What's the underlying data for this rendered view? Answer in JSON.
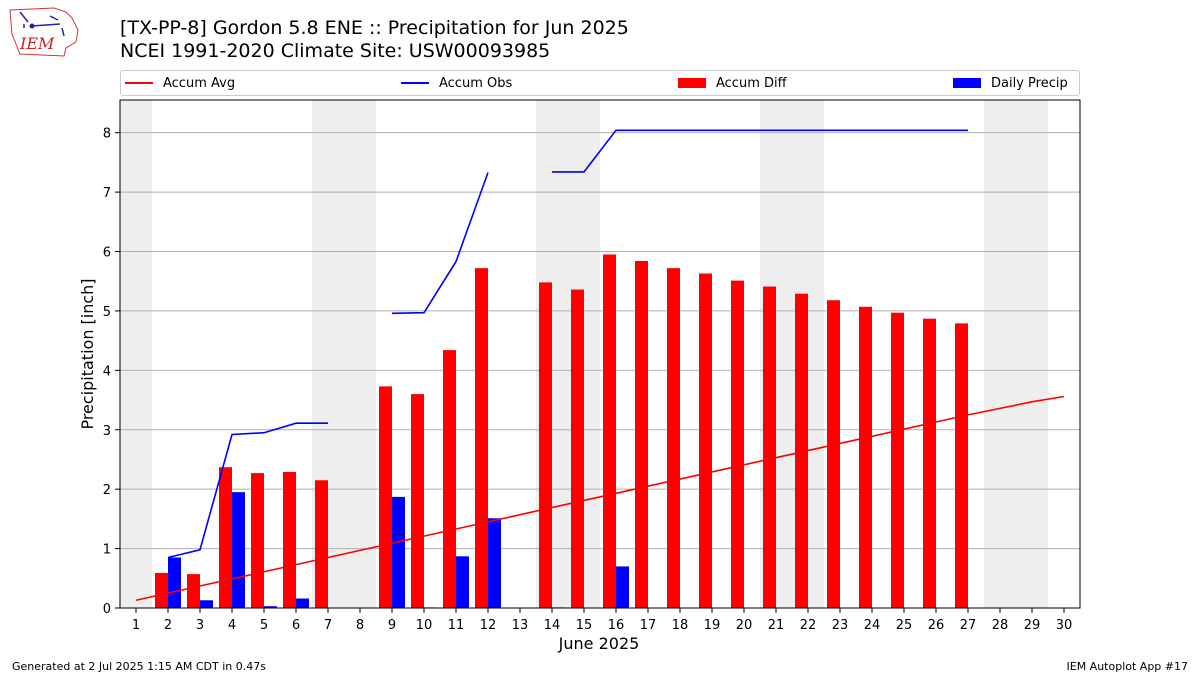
{
  "header": {
    "title_line1": "[TX-PP-8] Gordon 5.8 ENE :: Precipitation for Jun 2025",
    "title_line2": "NCEI 1991-2020 Climate Site: USW00093985",
    "logo_text": "IEM"
  },
  "legend": {
    "items": [
      {
        "label": "Accum Avg",
        "kind": "line",
        "color": "#ff0000"
      },
      {
        "label": "Accum Obs",
        "kind": "line",
        "color": "#0000ff"
      },
      {
        "label": "Accum Diff",
        "kind": "box",
        "color": "#ff0000"
      },
      {
        "label": "Daily Precip",
        "kind": "box",
        "color": "#0000ff"
      }
    ]
  },
  "footer": {
    "left": "Generated at 2 Jul 2025 1:15 AM CDT in 0.47s",
    "right": "IEM Autoplot App #17"
  },
  "chart_data": {
    "type": "bar",
    "xlabel": "June 2025",
    "ylabel": "Precipitation [inch]",
    "x_ticks": [
      1,
      2,
      3,
      4,
      5,
      6,
      7,
      8,
      9,
      10,
      11,
      12,
      13,
      14,
      15,
      16,
      17,
      18,
      19,
      20,
      21,
      22,
      23,
      24,
      25,
      26,
      27,
      28,
      29,
      30
    ],
    "ylim": [
      0,
      8.55
    ],
    "y_ticks": [
      0,
      1,
      2,
      3,
      4,
      5,
      6,
      7,
      8
    ],
    "grid": "horizontal",
    "legend_placement": "top, above plot",
    "weekend_shading": [
      1,
      7,
      8,
      14,
      15,
      21,
      22,
      28,
      29
    ],
    "colors": {
      "avg": "#ff0000",
      "obs": "#0000ff",
      "diff": "#ff0000",
      "daily": "#0000ff",
      "shade": "#eeeeee"
    },
    "accum_avg": [
      [
        1,
        0.13
      ],
      [
        2,
        0.25
      ],
      [
        3,
        0.37
      ],
      [
        4,
        0.49
      ],
      [
        5,
        0.61
      ],
      [
        6,
        0.73
      ],
      [
        7,
        0.85
      ],
      [
        8,
        0.97
      ],
      [
        9,
        1.09
      ],
      [
        10,
        1.21
      ],
      [
        11,
        1.33
      ],
      [
        12,
        1.45
      ],
      [
        13,
        1.57
      ],
      [
        14,
        1.69
      ],
      [
        15,
        1.81
      ],
      [
        16,
        1.93
      ],
      [
        17,
        2.05
      ],
      [
        18,
        2.17
      ],
      [
        19,
        2.29
      ],
      [
        20,
        2.41
      ],
      [
        21,
        2.53
      ],
      [
        22,
        2.65
      ],
      [
        23,
        2.77
      ],
      [
        24,
        2.89
      ],
      [
        25,
        3.01
      ],
      [
        26,
        3.13
      ],
      [
        27,
        3.25
      ],
      [
        28,
        3.36
      ],
      [
        29,
        3.47
      ],
      [
        30,
        3.56
      ]
    ],
    "accum_obs": [
      [
        [
          2,
          0.85
        ],
        [
          3,
          0.98
        ],
        [
          4,
          2.92
        ],
        [
          5,
          2.95
        ],
        [
          6,
          3.11
        ],
        [
          7,
          3.11
        ]
      ],
      [
        [
          9,
          4.96
        ],
        [
          10,
          4.97
        ],
        [
          11,
          5.83
        ],
        [
          12,
          7.33
        ]
      ],
      [
        [
          14,
          7.34
        ],
        [
          15,
          7.34
        ],
        [
          16,
          8.04
        ],
        [
          17,
          8.04
        ],
        [
          18,
          8.04
        ],
        [
          19,
          8.04
        ],
        [
          20,
          8.04
        ],
        [
          21,
          8.04
        ],
        [
          22,
          8.04
        ],
        [
          23,
          8.04
        ],
        [
          24,
          8.04
        ],
        [
          25,
          8.04
        ],
        [
          26,
          8.04
        ],
        [
          27,
          8.04
        ]
      ]
    ],
    "accum_diff": [
      [
        2,
        0.59
      ],
      [
        3,
        0.57
      ],
      [
        4,
        2.37
      ],
      [
        5,
        2.27
      ],
      [
        6,
        2.29
      ],
      [
        7,
        2.15
      ],
      [
        9,
        3.73
      ],
      [
        10,
        3.6
      ],
      [
        11,
        4.34
      ],
      [
        12,
        5.72
      ],
      [
        14,
        5.48
      ],
      [
        15,
        5.36
      ],
      [
        16,
        5.95
      ],
      [
        17,
        5.84
      ],
      [
        18,
        5.72
      ],
      [
        19,
        5.63
      ],
      [
        20,
        5.51
      ],
      [
        21,
        5.41
      ],
      [
        22,
        5.29
      ],
      [
        23,
        5.18
      ],
      [
        24,
        5.07
      ],
      [
        25,
        4.97
      ],
      [
        26,
        4.87
      ],
      [
        27,
        4.79
      ]
    ],
    "daily_precip": [
      [
        2,
        0.85
      ],
      [
        3,
        0.13
      ],
      [
        4,
        1.95
      ],
      [
        5,
        0.03
      ],
      [
        6,
        0.16
      ],
      [
        9,
        1.87
      ],
      [
        10,
        0.01
      ],
      [
        11,
        0.87
      ],
      [
        12,
        1.51
      ],
      [
        14,
        0.01
      ],
      [
        16,
        0.7
      ]
    ]
  }
}
